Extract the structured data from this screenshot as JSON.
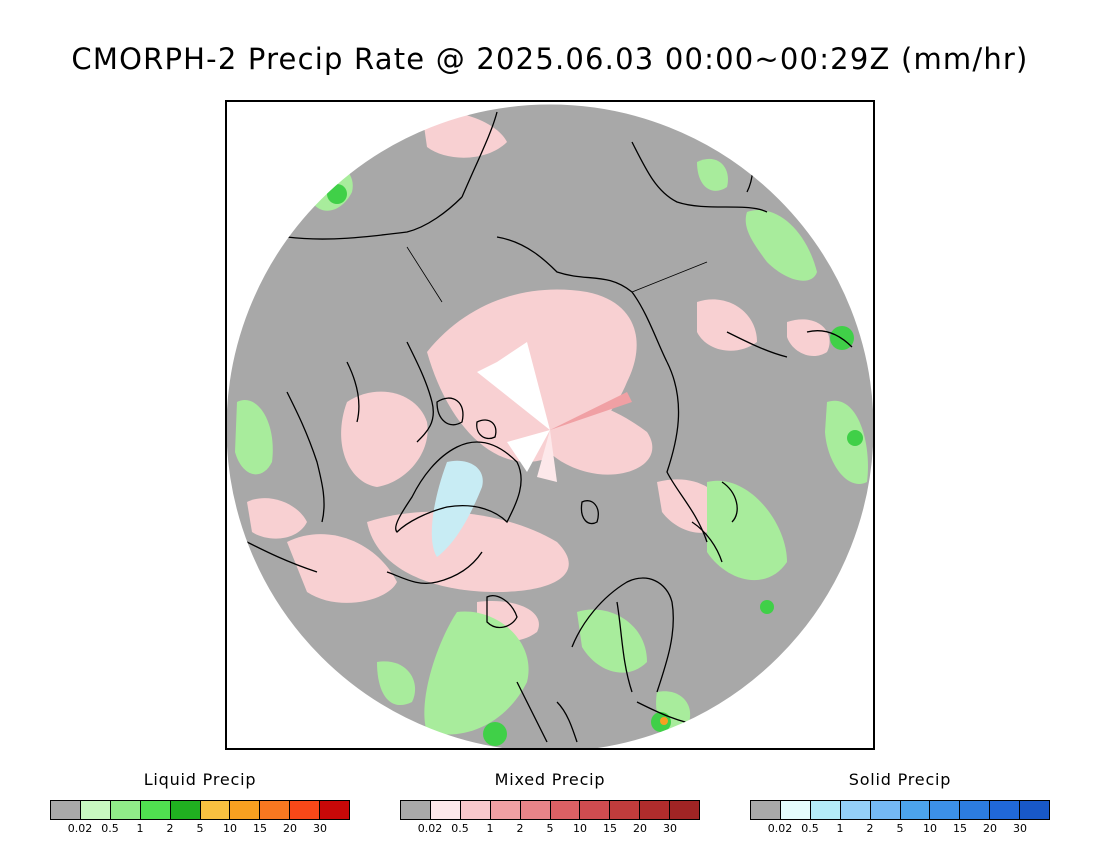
{
  "title": "CMORPH-2 Precip Rate @ 2025.06.03 00:00~00:29Z (mm/hr)",
  "legends": [
    {
      "title": "Liquid Precip",
      "colors": [
        "#a8a8a8",
        "#c8f8c0",
        "#90ec88",
        "#50e050",
        "#20b020",
        "#f8c040",
        "#f8a020",
        "#f87820",
        "#f84818",
        "#c80808"
      ],
      "ticks": [
        "0.02",
        "0.5",
        "1",
        "2",
        "5",
        "10",
        "15",
        "20",
        "30"
      ]
    },
    {
      "title": "Mixed Precip",
      "colors": [
        "#a8a8a8",
        "#fde8ea",
        "#f8c8cc",
        "#f0a0a4",
        "#e88488",
        "#dc6064",
        "#d04c50",
        "#c03c3c",
        "#b02c2c",
        "#a02424"
      ],
      "ticks": [
        "0.02",
        "0.5",
        "1",
        "2",
        "5",
        "10",
        "15",
        "20",
        "30"
      ]
    },
    {
      "title": "Solid Precip",
      "colors": [
        "#a8a8a8",
        "#e4fcfc",
        "#b4ecf8",
        "#94d0f8",
        "#74b8f4",
        "#4ca4ec",
        "#3c90e8",
        "#2c7ce0",
        "#2068d8",
        "#1858c8"
      ],
      "ticks": [
        "0.02",
        "0.5",
        "1",
        "2",
        "5",
        "10",
        "15",
        "20",
        "30"
      ]
    }
  ]
}
